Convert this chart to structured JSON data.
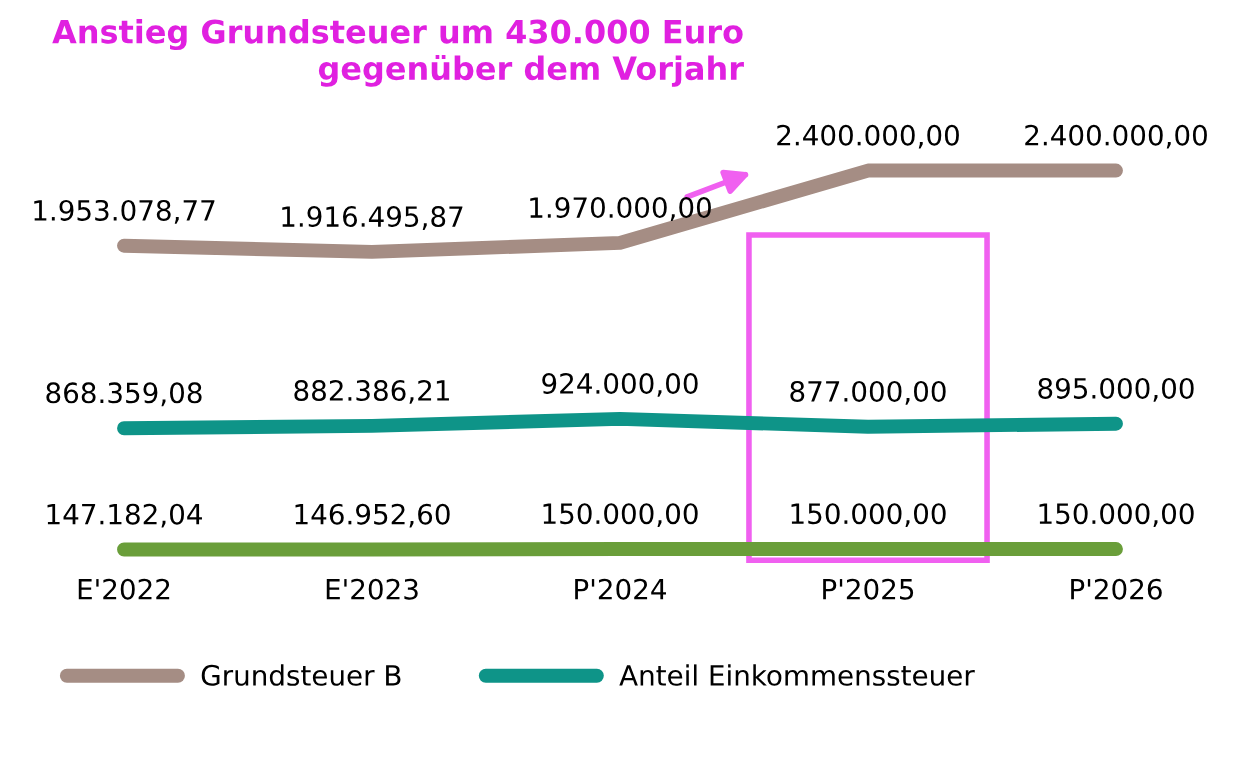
{
  "chart_data": {
    "type": "line",
    "categories": [
      "E'2022",
      "E'2023",
      "P'2024",
      "P'2025",
      "P'2026"
    ],
    "series": [
      {
        "name": "Grundsteuer B",
        "color": "#a58d84",
        "values": [
          1953078.77,
          1916495.87,
          1970000,
          2400000,
          2400000
        ],
        "value_labels": [
          "1.953.078,77",
          "1.916.495,87",
          "1.970.000,00",
          "2.400.000,00",
          "2.400.000,00"
        ]
      },
      {
        "name": "Anteil Einkommenssteuer",
        "color": "#0e9488",
        "values": [
          868359.08,
          882386.21,
          924000,
          877000,
          895000
        ],
        "value_labels": [
          "868.359,08",
          "882.386,21",
          "924.000,00",
          "877.000,00",
          "895.000,00"
        ]
      },
      {
        "color": "#6a9e3a",
        "values": [
          147182.04,
          146952.6,
          150000,
          150000,
          150000
        ],
        "value_labels": [
          "147.182,04",
          "146.952,60",
          "150.000,00",
          "150.000,00",
          "150.000,00"
        ]
      }
    ],
    "tick_labels": "x",
    "legend": "bottom",
    "marker": "none",
    "line_style": "solid",
    "annotations": [
      "Anstieg Grundsteuer um 430.000 Euro\ngegenüber dem Vorjahr"
    ]
  }
}
